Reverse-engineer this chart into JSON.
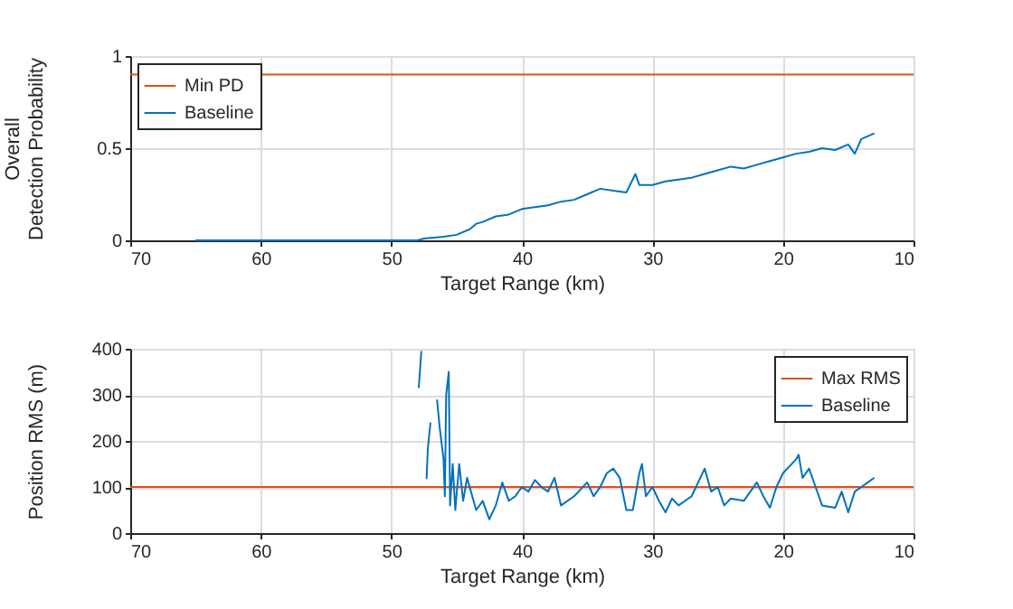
{
  "chart_data": [
    {
      "type": "line",
      "xlabel": "Target Range (km)",
      "ylabel": "Overall\nDetection Probability",
      "xlim": [
        70,
        10
      ],
      "xticks": [
        70,
        60,
        50,
        40,
        30,
        20,
        10
      ],
      "ylim": [
        0,
        1
      ],
      "yticks": [
        0,
        0.5,
        1
      ],
      "grid": true,
      "legend": "top left",
      "series": [
        {
          "name": "Min PD",
          "color": "#d95319",
          "x": [
            70,
            10
          ],
          "values": [
            0.9,
            0.9
          ]
        },
        {
          "name": "Baseline",
          "color": "#0072bd",
          "x": [
            65,
            48,
            47.5,
            46,
            45,
            44,
            43.5,
            43,
            42,
            41,
            40,
            39,
            38,
            37,
            36,
            35,
            34,
            33,
            32,
            31.3,
            31,
            30,
            29,
            28,
            27,
            26,
            25,
            24,
            23,
            22,
            21,
            20,
            19,
            18,
            17,
            16,
            15,
            14.5,
            14,
            13
          ],
          "values": [
            0,
            0,
            0.01,
            0.02,
            0.03,
            0.06,
            0.09,
            0.1,
            0.13,
            0.14,
            0.17,
            0.18,
            0.19,
            0.21,
            0.22,
            0.25,
            0.28,
            0.27,
            0.26,
            0.36,
            0.3,
            0.3,
            0.32,
            0.33,
            0.34,
            0.36,
            0.38,
            0.4,
            0.39,
            0.41,
            0.43,
            0.45,
            0.47,
            0.48,
            0.5,
            0.49,
            0.52,
            0.47,
            0.55,
            0.58
          ]
        }
      ]
    },
    {
      "type": "line",
      "xlabel": "Target Range (km)",
      "ylabel": "Position RMS (m)",
      "xlim": [
        70,
        10
      ],
      "xticks": [
        70,
        60,
        50,
        40,
        30,
        20,
        10
      ],
      "ylim": [
        0,
        400
      ],
      "yticks": [
        0,
        100,
        200,
        300,
        400
      ],
      "grid": true,
      "legend": "top right",
      "series": [
        {
          "name": "Max RMS",
          "color": "#d95319",
          "x": [
            70,
            10
          ],
          "values": [
            100,
            100
          ]
        },
        {
          "name": "Baseline",
          "color": "#0072bd",
          "x": [
            47.9,
            47.7,
            47.5,
            47.3,
            47.2,
            47.0,
            46.8,
            46.5,
            46.3,
            46.0,
            45.9,
            45.8,
            45.6,
            45.5,
            45.3,
            45.1,
            44.8,
            44.5,
            44.2,
            43.8,
            43.5,
            43.0,
            42.5,
            42,
            41.5,
            41,
            40.5,
            40,
            39.5,
            39,
            38.5,
            38,
            37.5,
            37,
            36,
            35,
            34.5,
            34,
            33.5,
            33,
            32.5,
            32,
            31.5,
            31,
            30.8,
            30.5,
            30,
            29.5,
            29,
            28.5,
            28,
            27,
            26,
            25.5,
            25,
            24.5,
            24,
            23,
            22,
            21.5,
            21,
            20.5,
            20,
            19,
            18.8,
            18.5,
            18,
            17.5,
            17,
            16,
            15.5,
            15,
            14.5,
            14,
            13.5,
            13
          ],
          "values": [
            315,
            395,
            null,
            117,
            185,
            240,
            null,
            290,
            230,
            160,
            80,
            300,
            350,
            60,
            150,
            50,
            150,
            70,
            120,
            80,
            50,
            70,
            30,
            60,
            110,
            70,
            80,
            100,
            90,
            115,
            100,
            90,
            120,
            60,
            80,
            110,
            80,
            100,
            130,
            140,
            120,
            50,
            50,
            130,
            150,
            80,
            100,
            70,
            45,
            75,
            60,
            80,
            140,
            90,
            100,
            60,
            75,
            70,
            110,
            80,
            55,
            100,
            130,
            160,
            170,
            120,
            140,
            100,
            60,
            55,
            90,
            45,
            90,
            100,
            110,
            120
          ]
        }
      ]
    }
  ]
}
